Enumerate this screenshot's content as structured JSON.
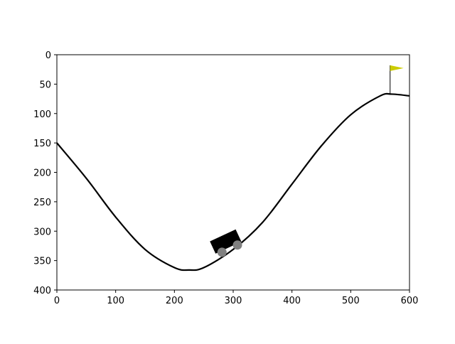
{
  "chart_data": {
    "type": "line",
    "title": "",
    "xlabel": "",
    "ylabel": "",
    "xlim": [
      0,
      600
    ],
    "ylim": [
      400,
      0
    ],
    "y_inverted": true,
    "grid": false,
    "x_ticks": [
      "0",
      "100",
      "200",
      "300",
      "400",
      "500",
      "600"
    ],
    "y_ticks": [
      "0",
      "50",
      "100",
      "150",
      "200",
      "250",
      "300",
      "350",
      "400"
    ],
    "x_tick_values": [
      0,
      100,
      200,
      300,
      400,
      500,
      600
    ],
    "y_tick_values": [
      0,
      50,
      100,
      150,
      200,
      250,
      300,
      350,
      400
    ],
    "series": [
      {
        "kind": "terrain-curve",
        "x": [
          0,
          50,
          100,
          150,
          200,
          225,
          250,
          300,
          350,
          400,
          450,
          500,
          550,
          570,
          600
        ],
        "y": [
          150,
          210,
          276,
          331,
          362,
          366,
          362,
          331,
          285,
          220,
          155,
          102,
          70,
          67,
          70
        ]
      }
    ],
    "objects": {
      "car": {
        "x": 292,
        "y": 328,
        "angle_deg": -25,
        "body_color": "#000000",
        "wheel_color": "#808080"
      },
      "flag": {
        "x": 567,
        "pole_top_y": 18,
        "pole_bottom_y": 67,
        "flag_color": "#cccc00"
      }
    },
    "colors": {
      "curve": "#000000",
      "axes": "#000000",
      "background": "#ffffff"
    }
  }
}
